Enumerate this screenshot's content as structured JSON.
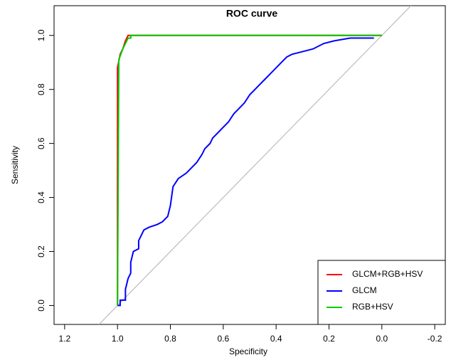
{
  "chart_data": {
    "type": "line",
    "title": "ROC curve",
    "x_label": "Specificity",
    "y_label": "Sensitivity",
    "xlim": [
      1.24,
      -0.24
    ],
    "ylim": [
      -0.07,
      1.11
    ],
    "xticks": [
      1.2,
      {
        "value": 1.0,
        "label": "1.0"
      },
      0.8,
      0.6,
      0.4,
      0.2,
      {
        "value": 0.0,
        "label": "0.0"
      },
      -0.2
    ],
    "yticks": [
      {
        "value": 0.0,
        "label": "0.0"
      },
      0.2,
      0.4,
      0.6,
      0.8,
      {
        "value": 1.0,
        "label": "1.0"
      }
    ],
    "legend_position": "bottom-right",
    "series": [
      {
        "name": "GLCM+RGB+HSV",
        "color": "#ff0000",
        "x": [
          1.0,
          1.0,
          0.99,
          0.98,
          0.97,
          0.96,
          0.93,
          0.0
        ],
        "values": [
          0.0,
          0.88,
          0.93,
          0.95,
          0.98,
          1.0,
          1.0,
          1.0
        ]
      },
      {
        "name": "GLCM",
        "color": "#0000ff",
        "x": [
          1.0,
          0.99,
          0.99,
          0.97,
          0.97,
          0.96,
          0.95,
          0.95,
          0.94,
          0.92,
          0.92,
          0.91,
          0.9,
          0.88,
          0.85,
          0.83,
          0.81,
          0.8,
          0.79,
          0.77,
          0.74,
          0.72,
          0.7,
          0.68,
          0.67,
          0.65,
          0.64,
          0.62,
          0.6,
          0.58,
          0.56,
          0.54,
          0.52,
          0.5,
          0.48,
          0.46,
          0.44,
          0.42,
          0.4,
          0.38,
          0.36,
          0.34,
          0.3,
          0.26,
          0.22,
          0.18,
          0.12,
          0.06,
          0.03
        ],
        "values": [
          0.0,
          0.0,
          0.02,
          0.02,
          0.06,
          0.1,
          0.12,
          0.16,
          0.2,
          0.21,
          0.24,
          0.26,
          0.28,
          0.29,
          0.3,
          0.31,
          0.33,
          0.37,
          0.44,
          0.47,
          0.49,
          0.51,
          0.53,
          0.56,
          0.58,
          0.6,
          0.62,
          0.64,
          0.66,
          0.68,
          0.71,
          0.73,
          0.75,
          0.78,
          0.8,
          0.82,
          0.84,
          0.86,
          0.88,
          0.9,
          0.92,
          0.93,
          0.94,
          0.95,
          0.97,
          0.98,
          0.99,
          0.99,
          0.99
        ]
      },
      {
        "name": "RGB+HSV",
        "color": "#00cc00",
        "x": [
          1.0,
          1.0,
          0.995,
          0.98,
          0.97,
          0.96,
          0.95,
          0.95,
          0.0
        ],
        "values": [
          0.0,
          0.01,
          0.91,
          0.95,
          0.97,
          0.99,
          0.99,
          1.0,
          1.0
        ]
      }
    ]
  }
}
